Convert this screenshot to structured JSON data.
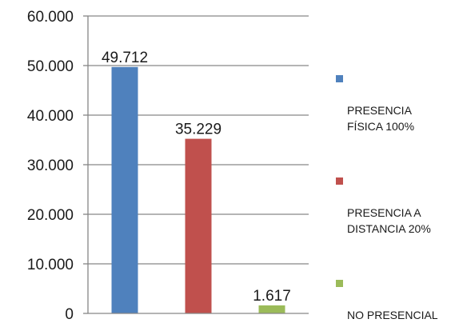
{
  "chart_data": {
    "type": "bar",
    "categories": [
      "PRESENCIA\nFÍSICA 100%",
      "PRESENCIA A\nDISTANCIA 20%",
      "NO PRESENCIAL"
    ],
    "values": [
      49712,
      35229,
      1617
    ],
    "data_labels": [
      "49.712",
      "35.229",
      "1.617"
    ],
    "colors": [
      "#4f81bd",
      "#c0504d",
      "#9bbb59"
    ],
    "ylim": [
      0,
      60000
    ],
    "yticks": [
      0,
      10000,
      20000,
      30000,
      40000,
      50000,
      60000
    ],
    "ytick_labels": [
      "0",
      "10.000",
      "20.000",
      "30.000",
      "40.000",
      "50.000",
      "60.000"
    ],
    "grid": true,
    "legend_position": "right",
    "title": "",
    "xlabel": "",
    "ylabel": ""
  }
}
